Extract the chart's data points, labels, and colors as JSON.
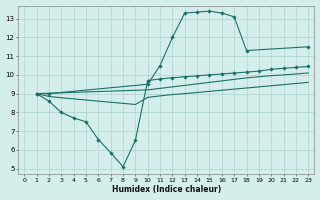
{
  "xlabel": "Humidex (Indice chaleur)",
  "bg_color": "#d4eeec",
  "grid_color": "#aed4d0",
  "line_color": "#1a7068",
  "xlim": [
    -0.5,
    23.5
  ],
  "ylim": [
    4.7,
    13.7
  ],
  "xticks": [
    0,
    1,
    2,
    3,
    4,
    5,
    6,
    7,
    8,
    9,
    10,
    11,
    12,
    13,
    14,
    15,
    16,
    17,
    18,
    19,
    20,
    21,
    22,
    23
  ],
  "yticks": [
    5,
    6,
    7,
    8,
    9,
    10,
    11,
    12,
    13
  ],
  "curve_top_x": [
    1,
    2,
    10,
    11,
    12,
    13,
    14,
    15,
    16,
    17,
    18,
    23
  ],
  "curve_top_y": [
    9.0,
    9.0,
    9.5,
    10.5,
    12.0,
    13.3,
    13.35,
    13.4,
    13.3,
    13.1,
    11.3,
    11.5
  ],
  "curve_bot_x": [
    1,
    2,
    3,
    4,
    5,
    6,
    7,
    8,
    9,
    10,
    11,
    12,
    13,
    14,
    15,
    16,
    17,
    18,
    19,
    20,
    21,
    22,
    23
  ],
  "curve_bot_y": [
    9.0,
    8.6,
    8.0,
    7.7,
    7.5,
    6.55,
    5.85,
    5.1,
    6.5,
    9.7,
    9.78,
    9.85,
    9.9,
    9.95,
    10.0,
    10.05,
    10.1,
    10.15,
    10.2,
    10.3,
    10.35,
    10.4,
    10.45
  ],
  "curve_mid1_x": [
    1,
    2,
    3,
    4,
    5,
    6,
    7,
    8,
    9,
    10,
    11,
    12,
    13,
    14,
    15,
    16,
    17,
    18,
    19,
    20,
    21,
    22,
    23
  ],
  "curve_mid1_y": [
    9.0,
    8.85,
    8.78,
    8.72,
    8.66,
    8.6,
    8.54,
    8.48,
    8.42,
    8.8,
    8.88,
    8.95,
    9.0,
    9.06,
    9.12,
    9.18,
    9.24,
    9.3,
    9.36,
    9.42,
    9.48,
    9.54,
    9.6
  ],
  "curve_mid2_x": [
    1,
    10,
    11,
    12,
    13,
    14,
    15,
    16,
    17,
    18,
    19,
    20,
    21,
    22,
    23
  ],
  "curve_mid2_y": [
    9.0,
    9.2,
    9.28,
    9.36,
    9.44,
    9.52,
    9.6,
    9.68,
    9.76,
    9.84,
    9.9,
    9.96,
    10.0,
    10.05,
    10.1
  ]
}
